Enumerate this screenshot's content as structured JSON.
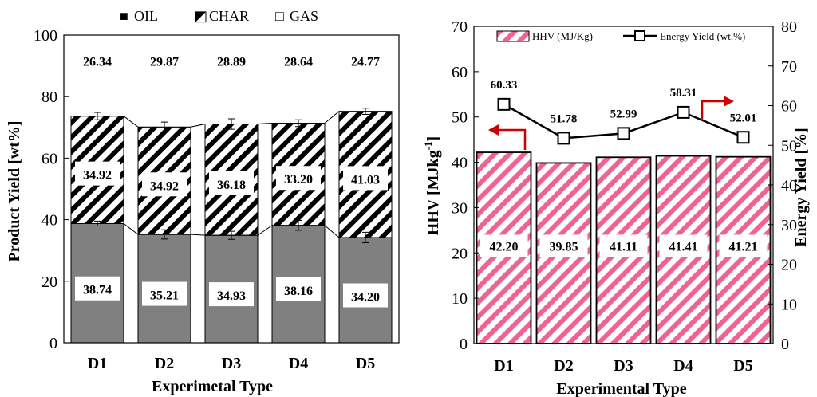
{
  "chart_data": [
    {
      "type": "bar",
      "stacked": true,
      "categories": [
        "D1",
        "D2",
        "D3",
        "D4",
        "D5"
      ],
      "series": [
        {
          "name": "OIL",
          "values": [
            38.74,
            35.21,
            34.93,
            38.16,
            34.2
          ],
          "labels": [
            "38.74",
            "35.21",
            "34.93",
            "38.16",
            "34.20"
          ],
          "color": "#808080",
          "pattern": "solid"
        },
        {
          "name": "CHAR",
          "values": [
            34.92,
            34.92,
            36.18,
            33.2,
            41.03
          ],
          "labels": [
            "34.92",
            "34.92",
            "36.18",
            "33.20",
            "41.03"
          ],
          "color": "#000000",
          "pattern": "diagonal-stripes"
        },
        {
          "name": "GAS",
          "values": [
            26.34,
            29.87,
            28.89,
            28.64,
            24.77
          ],
          "labels": [
            "26.34",
            "29.87",
            "28.89",
            "28.64",
            "24.77"
          ],
          "color": "#ffffff",
          "pattern": "none"
        }
      ],
      "error_bars": {
        "oil": [
          0.8,
          1.5,
          1.3,
          1.6,
          1.7
        ],
        "oil_char": [
          1.2,
          1.6,
          1.7,
          1.1,
          1.0
        ]
      },
      "xlabel": "Experimetal Type",
      "ylabel": "Product Yield [wt%]",
      "ylim": [
        0,
        100
      ],
      "yticks": [
        0,
        20,
        40,
        60,
        80,
        100
      ],
      "legend_position": "top",
      "legend_markers": [
        "■",
        "◩",
        "□"
      ]
    },
    {
      "type": "bar+line",
      "categories": [
        "D1",
        "D2",
        "D3",
        "D4",
        "D5"
      ],
      "bar_series": {
        "name": "HHV (MJ/Kg)",
        "values": [
          42.2,
          39.85,
          41.11,
          41.41,
          41.21
        ],
        "labels": [
          "42.20",
          "39.85",
          "41.11",
          "41.41",
          "41.21"
        ],
        "color": "#f06292"
      },
      "line_series": {
        "name": "Energy Yield (wt.%)",
        "values": [
          60.33,
          51.78,
          52.99,
          58.31,
          52.01
        ],
        "labels": [
          "60.33",
          "51.78",
          "52.99",
          "58.31",
          "52.01"
        ],
        "color": "#000000",
        "marker": "square"
      },
      "xlabel": "Experimental  Type",
      "ylabel_prefix": "HHV [MJkg",
      "ylabel_sup": "-1",
      "ylabel_suffix": "]",
      "y2label": "Energy  Yield [%]",
      "ylim": [
        0,
        70
      ],
      "yticks": [
        0,
        10,
        20,
        30,
        40,
        50,
        60,
        70
      ],
      "y2lim": [
        0,
        80
      ],
      "y2ticks": [
        0,
        10,
        20,
        30,
        40,
        50,
        60,
        70,
        80
      ],
      "legend_position": "top",
      "arrow_color": "#cc0000"
    }
  ]
}
